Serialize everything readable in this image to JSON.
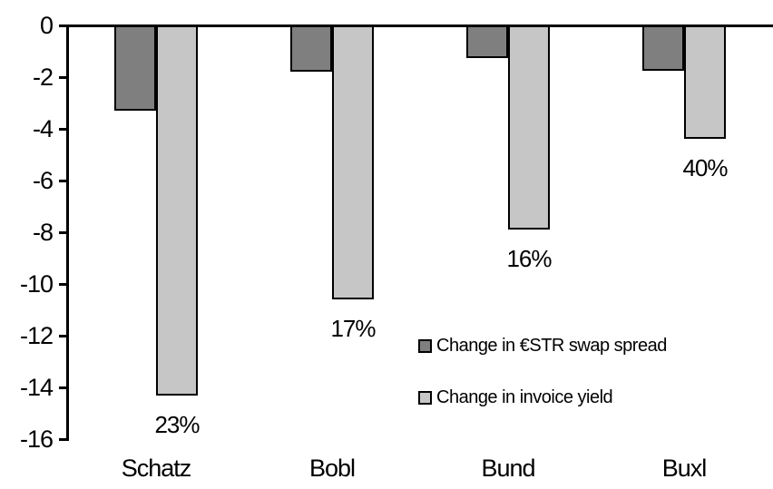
{
  "chart_data": {
    "type": "bar",
    "orientation": "vertical",
    "categories": [
      "Schatz",
      "Bobl",
      "Bund",
      "Buxl"
    ],
    "series": [
      {
        "name": "Change in €STR swap spread",
        "color": "#7f7f7f",
        "values": [
          -3.3,
          -1.8,
          -1.25,
          -1.75
        ]
      },
      {
        "name": "Change in invoice yield",
        "color": "#c6c6c6",
        "values": [
          -14.3,
          -10.6,
          -7.9,
          -4.4
        ]
      }
    ],
    "bar_labels": {
      "series_index": 1,
      "values": [
        "23%",
        "17%",
        "16%",
        "40%"
      ]
    },
    "yticks": [
      0,
      -2,
      -4,
      -6,
      -8,
      -10,
      -12,
      -14,
      -16
    ],
    "ylim": [
      -16,
      0
    ],
    "bar_outline_color": "#000000",
    "axis_color": "#000000",
    "grid": false,
    "legend_position": "inside-right"
  }
}
